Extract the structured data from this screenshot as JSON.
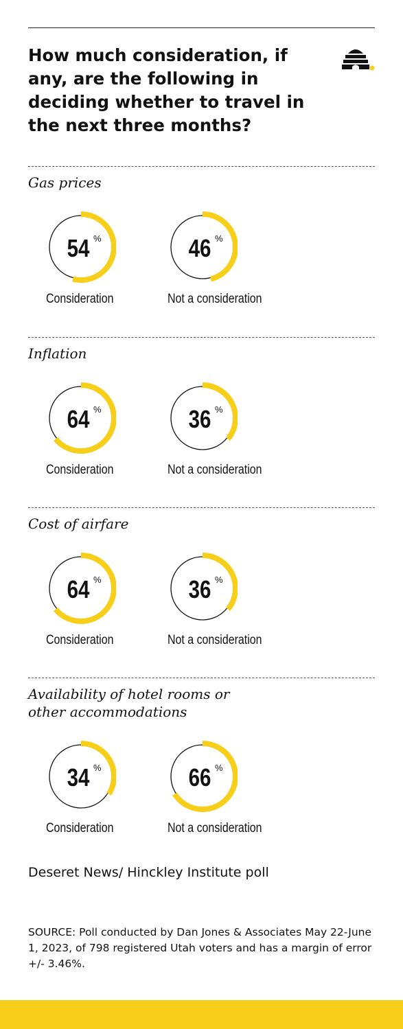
{
  "title": "How much consideration, if any, are the following in deciding whether to travel in the next three months?",
  "percent_symbol": "%",
  "colors": {
    "accent": "#f7cf1b",
    "ink": "#111111",
    "footer": "#f7cf1b"
  },
  "logo_icon": "beehive-icon",
  "chart_data": {
    "type": "donut",
    "title": "How much consideration, if any, are the following in deciding whether to travel in the next three months?",
    "categories": [
      "Consideration",
      "Not a consideration"
    ],
    "groups": [
      {
        "label": "Gas prices",
        "values": [
          54,
          46
        ]
      },
      {
        "label": "Inflation",
        "values": [
          64,
          36
        ]
      },
      {
        "label": "Cost of airfare",
        "values": [
          64,
          36
        ]
      },
      {
        "label": "Availability of hotel rooms or other accommodations",
        "values": [
          34,
          66
        ]
      }
    ]
  },
  "credit": "Deseret News/ Hinckley Institute poll",
  "source": "SOURCE: Poll conducted by Dan Jones & Associates May 22-June 1, 2023, of 798 registered Utah voters and has a margin of error +/- 3.46%."
}
